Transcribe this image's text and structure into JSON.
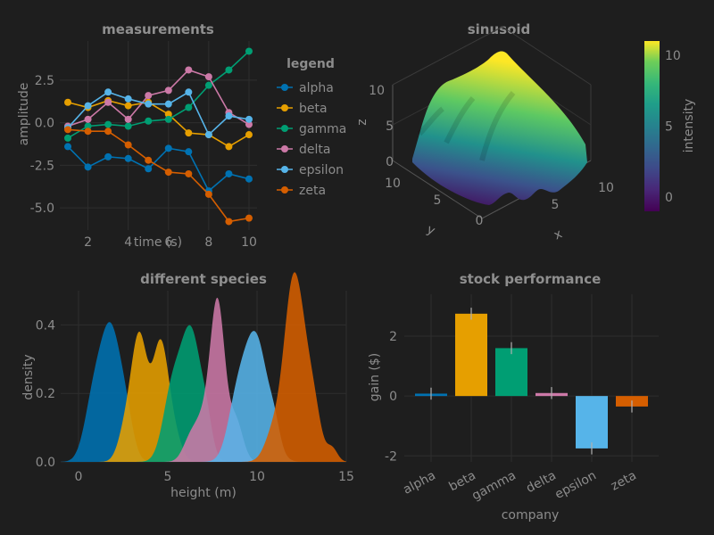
{
  "chart_data": [
    {
      "type": "line",
      "title": "measurements",
      "xlabel": "time (s)",
      "ylabel": "amplitude",
      "xlim": [
        0.6,
        10.4
      ],
      "ylim": [
        -6.3,
        4.8
      ],
      "xticks": [
        "2",
        "4",
        "6",
        "8",
        "10"
      ],
      "yticks": [
        "2.5",
        "0.0",
        "-2.5",
        "-5.0"
      ],
      "x": [
        1,
        2,
        3,
        4,
        5,
        6,
        7,
        8,
        9,
        10
      ],
      "legend_title": "legend",
      "series": [
        {
          "name": "alpha",
          "color": "#0072b2",
          "values": [
            -1.4,
            -2.6,
            -2.0,
            -2.1,
            -2.7,
            -1.5,
            -1.7,
            -4.0,
            -3.0,
            -3.3
          ]
        },
        {
          "name": "beta",
          "color": "#e69f00",
          "values": [
            1.2,
            0.9,
            1.3,
            1.0,
            1.2,
            0.5,
            -0.6,
            -0.7,
            -1.4,
            -0.7
          ]
        },
        {
          "name": "gamma",
          "color": "#009e73",
          "values": [
            -0.9,
            -0.2,
            -0.1,
            -0.2,
            0.1,
            0.2,
            0.9,
            2.2,
            3.1,
            4.2
          ]
        },
        {
          "name": "delta",
          "color": "#cc79a7",
          "values": [
            -0.2,
            0.2,
            1.2,
            0.2,
            1.6,
            1.9,
            3.1,
            2.7,
            0.6,
            -0.1
          ]
        },
        {
          "name": "epsilon",
          "color": "#56b4e9",
          "values": [
            -0.3,
            1.0,
            1.8,
            1.4,
            1.1,
            1.1,
            1.8,
            -0.7,
            0.4,
            0.2
          ]
        },
        {
          "name": "zeta",
          "color": "#d55e00",
          "values": [
            -0.4,
            -0.5,
            -0.5,
            -1.3,
            -2.2,
            -2.9,
            -3.0,
            -4.2,
            -5.8,
            -5.6
          ]
        }
      ]
    },
    {
      "type": "surface",
      "title": "sinusoid",
      "xlabel": "x",
      "ylabel": "y",
      "zlabel": "z",
      "xlim": [
        0,
        12
      ],
      "ylim": [
        0,
        10
      ],
      "zlim": [
        -1,
        11
      ],
      "xticks": [
        "5",
        "10"
      ],
      "yticks": [
        "0",
        "5",
        "10"
      ],
      "zticks": [
        "0",
        "5",
        "10"
      ],
      "colorbar_label": "intensity",
      "colorbar_ticks": [
        "0",
        "5",
        "10"
      ],
      "colorbar_range": [
        -1,
        11
      ],
      "colormap": "viridis"
    },
    {
      "type": "area",
      "title": "different species",
      "xlabel": "height (m)",
      "ylabel": "density",
      "xlim": [
        -1,
        15
      ],
      "ylim": [
        0,
        0.5
      ],
      "xticks": [
        "0",
        "5",
        "10",
        "15"
      ],
      "yticks": [
        "0.0",
        "0.2",
        "0.4"
      ],
      "series": [
        {
          "color": "#0072b2",
          "peaks": [
            [
              1.8,
              0.38,
              0.6
            ],
            [
              0.8,
              0.15,
              0.5
            ],
            [
              2.7,
              0.08,
              0.4
            ]
          ]
        },
        {
          "color": "#e69f00",
          "peaks": [
            [
              3.4,
              0.36,
              0.45
            ],
            [
              4.6,
              0.34,
              0.45
            ],
            [
              2.6,
              0.08,
              0.4
            ],
            [
              5.4,
              0.06,
              0.4
            ]
          ]
        },
        {
          "color": "#009e73",
          "peaks": [
            [
              6.3,
              0.38,
              0.6
            ],
            [
              5.2,
              0.18,
              0.5
            ],
            [
              7.2,
              0.06,
              0.3
            ]
          ]
        },
        {
          "color": "#cc79a7",
          "peaks": [
            [
              7.8,
              0.44,
              0.4
            ],
            [
              7.0,
              0.12,
              0.5
            ],
            [
              8.8,
              0.12,
              0.4
            ],
            [
              6.2,
              0.05,
              0.4
            ]
          ]
        },
        {
          "color": "#56b4e9",
          "peaks": [
            [
              9.9,
              0.37,
              0.7
            ],
            [
              8.8,
              0.12,
              0.5
            ],
            [
              11.0,
              0.05,
              0.3
            ]
          ]
        },
        {
          "color": "#d55e00",
          "peaks": [
            [
              11.9,
              0.39,
              0.45
            ],
            [
              12.5,
              0.28,
              0.45
            ],
            [
              11.0,
              0.1,
              0.5
            ],
            [
              13.2,
              0.14,
              0.4
            ],
            [
              14.2,
              0.04,
              0.3
            ]
          ]
        }
      ]
    },
    {
      "type": "bar",
      "title": "stock performance",
      "xlabel": "company",
      "ylabel": "gain ($)",
      "ylim": [
        -2.2,
        3.4
      ],
      "yticks": [
        "2",
        "0",
        "-2"
      ],
      "categories": [
        "alpha",
        "beta",
        "gamma",
        "delta",
        "epsilon",
        "zeta"
      ],
      "values": [
        0.08,
        2.75,
        1.6,
        0.1,
        -1.75,
        -0.35
      ],
      "errors": [
        0.2,
        0.2,
        0.2,
        0.2,
        0.2,
        0.2
      ],
      "colors": [
        "#0072b2",
        "#e69f00",
        "#009e73",
        "#cc79a7",
        "#56b4e9",
        "#d55e00"
      ]
    }
  ]
}
